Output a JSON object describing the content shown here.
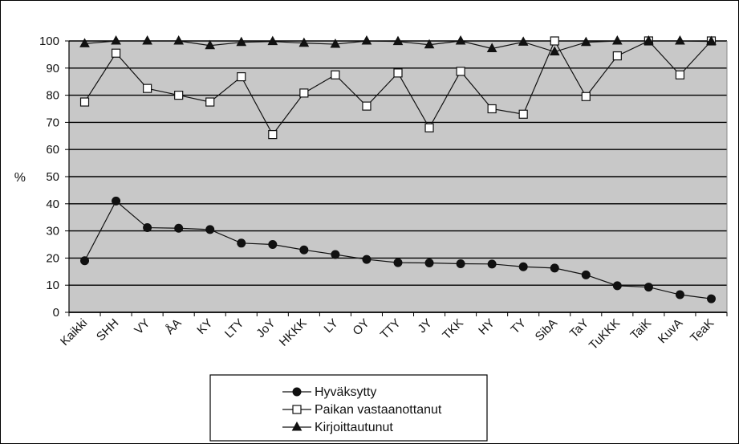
{
  "chart_data": {
    "type": "line",
    "title": "",
    "xlabel": "",
    "ylabel": "%",
    "ylim": [
      0,
      100
    ],
    "yticks": [
      0,
      10,
      20,
      30,
      40,
      50,
      60,
      70,
      80,
      90,
      100
    ],
    "grid": "horizontal",
    "legend_position": "bottom-center",
    "plot_background": "#c8c8c8",
    "categories": [
      "Kaikki",
      "SHH",
      "VY",
      "ÅA",
      "KY",
      "LTY",
      "JoY",
      "HKKK",
      "LY",
      "OY",
      "TTY",
      "JY",
      "TKK",
      "HY",
      "TY",
      "SibA",
      "TaY",
      "TuKKK",
      "TaiK",
      "KuvA",
      "TeaK"
    ],
    "series": [
      {
        "name": "Hyväksytty",
        "marker": "filled-circle",
        "values": [
          19,
          41,
          31.2,
          31,
          30.5,
          25.5,
          25,
          23,
          21.3,
          19.5,
          18.3,
          18.2,
          17.9,
          17.8,
          16.8,
          16.3,
          13.8,
          9.8,
          9.3,
          6.5,
          5
        ]
      },
      {
        "name": "Paikan vastaanottanut",
        "marker": "open-square",
        "values": [
          77.5,
          95.5,
          82.5,
          80,
          77.5,
          86.8,
          65.5,
          80.8,
          87.5,
          76,
          88.2,
          68,
          88.8,
          75,
          73,
          100,
          79.5,
          94.5,
          100,
          87.5,
          100
        ]
      },
      {
        "name": "Kirjoittautunut",
        "marker": "filled-triangle",
        "values": [
          99,
          100,
          100,
          100,
          98.3,
          99.5,
          99.8,
          99.2,
          98.8,
          100,
          99.8,
          98.6,
          100,
          97.2,
          99.6,
          96,
          99.5,
          100,
          100,
          100,
          99.8
        ]
      }
    ]
  }
}
